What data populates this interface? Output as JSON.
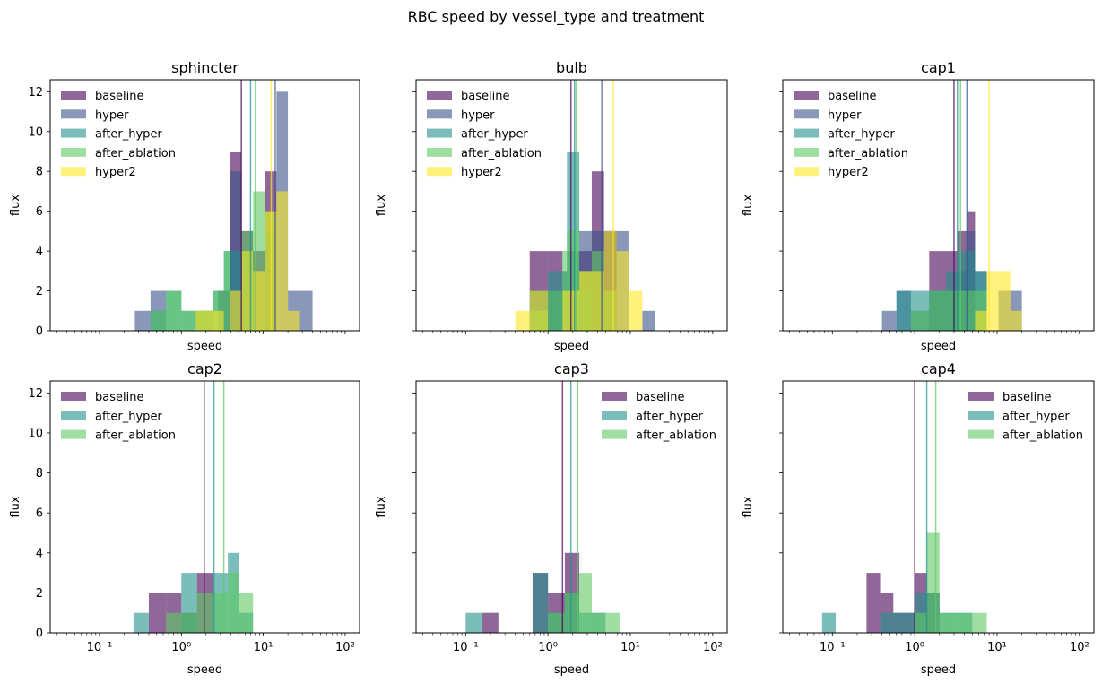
{
  "figure": {
    "title": "RBC speed by vessel_type and treatment"
  },
  "colors": {
    "baseline": "#440154",
    "hyper": "#3b528b",
    "after_hyper": "#21918c",
    "after_ablation": "#5ec962",
    "hyper2": "#fde725"
  },
  "chart_data": [
    {
      "type": "histogram",
      "title": "sphincter",
      "xlabel": "speed",
      "ylabel": "flux",
      "xscale": "log",
      "xlim": [
        0.025,
        150
      ],
      "ylim": [
        0,
        12.6
      ],
      "yticks": [
        0,
        2,
        4,
        6,
        8,
        10,
        12
      ],
      "xtick_labels": [],
      "legend_loc": "upper left",
      "series": [
        {
          "name": "baseline",
          "key": "baseline",
          "bins": [
            [
              2.8,
              3.9,
              2
            ],
            [
              3.9,
              5.4,
              9
            ],
            [
              5.4,
              7.5,
              5
            ],
            [
              7.5,
              10.4,
              4
            ],
            [
              10.4,
              14.5,
              8
            ]
          ],
          "mean_line": 5.4
        },
        {
          "name": "hyper",
          "key": "hyper",
          "bins": [
            [
              0.27,
              0.42,
              1
            ],
            [
              0.42,
              0.65,
              2
            ],
            [
              1.5,
              2.4,
              1
            ],
            [
              3.9,
              5.4,
              8
            ],
            [
              5.4,
              7.5,
              4
            ],
            [
              10.4,
              14.5,
              5
            ],
            [
              14.5,
              20,
              12
            ],
            [
              20,
              28,
              2
            ],
            [
              28,
              40,
              2
            ]
          ],
          "mean_line": 14.0
        },
        {
          "name": "after_hyper",
          "key": "after_hyper",
          "bins": [
            [
              0.42,
              0.65,
              1
            ],
            [
              0.65,
              1.0,
              2
            ],
            [
              1.0,
              1.5,
              1
            ],
            [
              1.5,
              2.4,
              1
            ],
            [
              2.4,
              3.3,
              2
            ],
            [
              3.3,
              3.9,
              4
            ],
            [
              3.9,
              5.4,
              4
            ],
            [
              5.4,
              7.5,
              4
            ]
          ],
          "mean_line": 7.0
        },
        {
          "name": "after_ablation",
          "key": "after_ablation",
          "bins": [
            [
              0.42,
              0.65,
              1
            ],
            [
              0.65,
              1.0,
              2
            ],
            [
              1.0,
              1.5,
              1
            ],
            [
              1.5,
              2.4,
              1
            ],
            [
              2.4,
              3.3,
              2
            ],
            [
              3.3,
              3.9,
              4
            ],
            [
              5.4,
              7.5,
              5
            ],
            [
              7.5,
              10.4,
              7
            ],
            [
              10.4,
              14.5,
              6
            ]
          ],
          "mean_line": 8.0
        },
        {
          "name": "hyper2",
          "key": "hyper2",
          "bins": [
            [
              1.5,
              2.4,
              1
            ],
            [
              2.4,
              3.3,
              1
            ],
            [
              3.9,
              5.4,
              2
            ],
            [
              5.4,
              7.5,
              4
            ],
            [
              7.5,
              10.4,
              3
            ],
            [
              10.4,
              14.5,
              6
            ],
            [
              14.5,
              20,
              7
            ],
            [
              20,
              28,
              1
            ]
          ],
          "mean_line": 12.5
        }
      ]
    },
    {
      "type": "histogram",
      "title": "bulb",
      "xlabel": "speed",
      "ylabel": "flux",
      "xscale": "log",
      "xlim": [
        0.025,
        150
      ],
      "ylim": [
        0,
        12.6
      ],
      "yticks": [
        0,
        2,
        4,
        6,
        8,
        10,
        12
      ],
      "xtick_labels": [],
      "legend_loc": "upper left",
      "series": [
        {
          "name": "baseline",
          "key": "baseline",
          "bins": [
            [
              0.6,
              1.0,
              4
            ],
            [
              1.0,
              1.5,
              4
            ],
            [
              2.4,
              3.4,
              4
            ],
            [
              3.4,
              4.8,
              8
            ],
            [
              4.8,
              6.8,
              5
            ]
          ],
          "mean_line": 1.9
        },
        {
          "name": "hyper",
          "key": "hyper",
          "bins": [
            [
              1.0,
              1.5,
              2
            ],
            [
              1.5,
              1.7,
              3
            ],
            [
              1.7,
              2.4,
              4
            ],
            [
              2.4,
              3.4,
              5
            ],
            [
              3.4,
              4.8,
              5
            ],
            [
              4.8,
              6.8,
              5
            ],
            [
              6.8,
              9.5,
              5
            ],
            [
              14,
              20,
              1
            ]
          ],
          "mean_line": 4.5
        },
        {
          "name": "after_hyper",
          "key": "after_hyper",
          "bins": [
            [
              0.6,
              1.0,
              2
            ],
            [
              1.0,
              1.5,
              3
            ],
            [
              1.5,
              1.7,
              3
            ],
            [
              1.7,
              2.4,
              9
            ],
            [
              2.4,
              3.4,
              2
            ]
          ],
          "mean_line": 2.1
        },
        {
          "name": "after_ablation",
          "key": "after_ablation",
          "bins": [
            [
              0.6,
              1.0,
              1
            ],
            [
              1.0,
              1.5,
              2
            ],
            [
              1.5,
              1.7,
              4
            ],
            [
              1.7,
              2.4,
              5
            ],
            [
              2.4,
              3.4,
              3
            ],
            [
              3.4,
              4.8,
              4
            ],
            [
              4.8,
              6.8,
              2
            ]
          ],
          "mean_line": 2.2
        },
        {
          "name": "hyper2",
          "key": "hyper2",
          "bins": [
            [
              0.4,
              0.6,
              1
            ],
            [
              0.6,
              1.0,
              2
            ],
            [
              1.5,
              1.7,
              2
            ],
            [
              1.7,
              2.4,
              2
            ],
            [
              2.4,
              3.4,
              3
            ],
            [
              3.4,
              4.8,
              3
            ],
            [
              4.8,
              6.8,
              5
            ],
            [
              6.8,
              9.5,
              4
            ],
            [
              9.5,
              14,
              2
            ]
          ],
          "mean_line": 6.2
        }
      ]
    },
    {
      "type": "histogram",
      "title": "cap1",
      "xlabel": "speed",
      "ylabel": "flux",
      "xscale": "log",
      "xlim": [
        0.025,
        150
      ],
      "ylim": [
        0,
        12.6
      ],
      "yticks": [
        0,
        2,
        4,
        6,
        8,
        10,
        12
      ],
      "xtick_labels": [],
      "legend_loc": "upper left",
      "series": [
        {
          "name": "baseline",
          "key": "baseline",
          "bins": [
            [
              1.5,
              2.4,
              4
            ],
            [
              2.4,
              3.3,
              4
            ],
            [
              3.3,
              4.3,
              5
            ],
            [
              4.3,
              5.4,
              6
            ]
          ],
          "mean_line": 3.0
        },
        {
          "name": "hyper",
          "key": "hyper",
          "bins": [
            [
              0.4,
              0.6,
              1
            ],
            [
              0.6,
              0.9,
              2
            ],
            [
              0.9,
              1.5,
              1
            ],
            [
              1.5,
              2.4,
              2
            ],
            [
              2.4,
              3.3,
              2
            ],
            [
              3.3,
              4.3,
              3
            ],
            [
              4.3,
              5.4,
              5
            ],
            [
              5.4,
              7.5,
              3
            ],
            [
              10.4,
              14.5,
              2
            ],
            [
              14.5,
              20,
              2
            ]
          ],
          "mean_line": 4.3
        },
        {
          "name": "after_hyper",
          "key": "after_hyper",
          "bins": [
            [
              0.6,
              0.9,
              2
            ],
            [
              0.9,
              1.5,
              2
            ],
            [
              1.5,
              2.4,
              2
            ],
            [
              2.4,
              3.3,
              3
            ],
            [
              3.3,
              4.3,
              4
            ],
            [
              4.3,
              5.4,
              4
            ],
            [
              5.4,
              7.5,
              3
            ]
          ],
          "mean_line": 3.3
        },
        {
          "name": "after_ablation",
          "key": "after_ablation",
          "bins": [
            [
              0.9,
              1.5,
              1
            ],
            [
              1.5,
              2.4,
              2
            ],
            [
              2.4,
              3.3,
              2
            ],
            [
              3.3,
              4.3,
              2
            ],
            [
              4.3,
              5.4,
              2
            ],
            [
              5.4,
              7.5,
              2
            ]
          ],
          "mean_line": 3.6
        },
        {
          "name": "hyper2",
          "key": "hyper2",
          "bins": [
            [
              5.4,
              7.5,
              1
            ],
            [
              7.5,
              10.4,
              3
            ],
            [
              10.4,
              14.5,
              3
            ],
            [
              14.5,
              20,
              1
            ]
          ],
          "mean_line": 8.0
        }
      ]
    },
    {
      "type": "histogram",
      "title": "cap2",
      "xlabel": "speed",
      "ylabel": "flux",
      "xscale": "log",
      "xlim": [
        0.025,
        150
      ],
      "ylim": [
        0,
        12.6
      ],
      "yticks": [
        0,
        2,
        4,
        6,
        8,
        10,
        12
      ],
      "xtick_labels": [
        "10⁻¹",
        "10⁰",
        "10¹",
        "10²"
      ],
      "xtick_values": [
        0.1,
        1,
        10,
        100
      ],
      "legend_loc": "upper left",
      "series": [
        {
          "name": "baseline",
          "key": "baseline",
          "bins": [
            [
              0.4,
              0.65,
              2
            ],
            [
              0.65,
              1.0,
              2
            ],
            [
              1.0,
              1.55,
              1
            ],
            [
              1.55,
              2.4,
              3
            ]
          ],
          "mean_line": 1.9
        },
        {
          "name": "after_hyper",
          "key": "after_hyper",
          "bins": [
            [
              0.26,
              0.4,
              1
            ],
            [
              1.0,
              1.55,
              3
            ],
            [
              2.4,
              3.7,
              3
            ],
            [
              3.7,
              5.0,
              4
            ],
            [
              5.0,
              7.5,
              1
            ]
          ],
          "mean_line": 2.5
        },
        {
          "name": "after_ablation",
          "key": "after_ablation",
          "bins": [
            [
              0.65,
              1.0,
              1
            ],
            [
              1.0,
              1.55,
              1
            ],
            [
              1.55,
              2.4,
              2
            ],
            [
              2.4,
              3.7,
              2
            ],
            [
              3.7,
              5.0,
              3
            ],
            [
              5.0,
              7.5,
              2
            ]
          ],
          "mean_line": 3.3
        }
      ]
    },
    {
      "type": "histogram",
      "title": "cap3",
      "xlabel": "speed",
      "ylabel": "flux",
      "xscale": "log",
      "xlim": [
        0.025,
        150
      ],
      "ylim": [
        0,
        12.6
      ],
      "yticks": [
        0,
        2,
        4,
        6,
        8,
        10,
        12
      ],
      "xtick_labels": [
        "10⁻¹",
        "10⁰",
        "10¹",
        "10²"
      ],
      "xtick_values": [
        0.1,
        1,
        10,
        100
      ],
      "legend_loc": "upper right",
      "series": [
        {
          "name": "baseline",
          "key": "baseline",
          "bins": [
            [
              0.16,
              0.25,
              1
            ],
            [
              0.65,
              1.0,
              3
            ],
            [
              1.0,
              1.6,
              2
            ],
            [
              1.6,
              2.4,
              4
            ]
          ],
          "mean_line": 1.5
        },
        {
          "name": "after_hyper",
          "key": "after_hyper",
          "bins": [
            [
              0.1,
              0.16,
              1
            ],
            [
              0.65,
              1.0,
              3
            ],
            [
              1.0,
              1.6,
              1
            ],
            [
              1.6,
              2.4,
              2
            ],
            [
              2.4,
              3.4,
              1
            ],
            [
              3.4,
              5.0,
              1
            ]
          ],
          "mean_line": 1.9
        },
        {
          "name": "after_ablation",
          "key": "after_ablation",
          "bins": [
            [
              1.0,
              1.6,
              1
            ],
            [
              1.6,
              2.4,
              2
            ],
            [
              2.4,
              3.4,
              3
            ],
            [
              3.4,
              5.0,
              1
            ],
            [
              5.0,
              7.5,
              1
            ]
          ],
          "mean_line": 2.3
        }
      ]
    },
    {
      "type": "histogram",
      "title": "cap4",
      "xlabel": "speed",
      "ylabel": "flux",
      "xscale": "log",
      "xlim": [
        0.025,
        150
      ],
      "ylim": [
        0,
        12.6
      ],
      "yticks": [
        0,
        2,
        4,
        6,
        8,
        10,
        12
      ],
      "xtick_labels": [
        "10⁻¹",
        "10⁰",
        "10¹",
        "10²"
      ],
      "xtick_values": [
        0.1,
        1,
        10,
        100
      ],
      "legend_loc": "upper right",
      "series": [
        {
          "name": "baseline",
          "key": "baseline",
          "bins": [
            [
              0.26,
              0.38,
              3
            ],
            [
              0.38,
              0.55,
              2
            ],
            [
              0.55,
              1.0,
              1
            ],
            [
              1.0,
              1.4,
              3
            ],
            [
              1.4,
              2.0,
              2
            ]
          ],
          "mean_line": 1.0
        },
        {
          "name": "after_hyper",
          "key": "after_hyper",
          "bins": [
            [
              0.075,
              0.11,
              1
            ],
            [
              0.38,
              0.55,
              1
            ],
            [
              0.55,
              1.0,
              1
            ],
            [
              1.0,
              1.4,
              2
            ],
            [
              1.4,
              2.0,
              2
            ],
            [
              2.0,
              3.4,
              1
            ],
            [
              3.4,
              5.0,
              1
            ]
          ],
          "mean_line": 1.4
        },
        {
          "name": "after_ablation",
          "key": "after_ablation",
          "bins": [
            [
              1.0,
              1.4,
              1
            ],
            [
              1.4,
              2.0,
              5
            ],
            [
              2.0,
              3.4,
              1
            ],
            [
              3.4,
              5.0,
              1
            ],
            [
              5.0,
              7.5,
              1
            ]
          ],
          "mean_line": 1.8
        }
      ]
    }
  ]
}
